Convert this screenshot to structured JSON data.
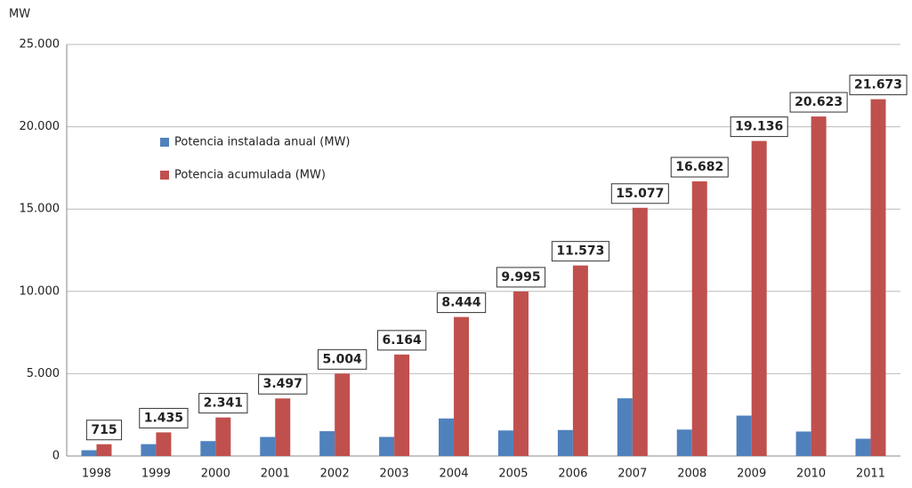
{
  "chart_data": {
    "type": "bar",
    "y_label": "MW",
    "categories": [
      "1998",
      "1999",
      "2000",
      "2001",
      "2002",
      "2003",
      "2004",
      "2005",
      "2006",
      "2007",
      "2008",
      "2009",
      "2010",
      "2011"
    ],
    "series": [
      {
        "name": "Potencia instalada anual (MW)",
        "color": "#4f81bd",
        "values": [
          350,
          720,
          906,
          1156,
          1507,
          1160,
          2280,
          1551,
          1578,
          3504,
          1605,
          2454,
          1487,
          1050
        ]
      },
      {
        "name": "Potencia acumulada (MW)",
        "color": "#c0504d",
        "values": [
          715,
          1435,
          2341,
          3497,
          5004,
          6164,
          8444,
          9995,
          11573,
          15077,
          16682,
          19136,
          20623,
          21673
        ],
        "value_labels": [
          "715",
          "1.435",
          "2.341",
          "3.497",
          "5.004",
          "6.164",
          "8.444",
          "9.995",
          "11.573",
          "15.077",
          "16.682",
          "19.136",
          "20.623",
          "21.673"
        ]
      }
    ],
    "ylim": [
      0,
      25000
    ],
    "yticks": [
      0,
      {
        "value": 5000,
        "label": "5.000"
      },
      {
        "value": 10000,
        "label": "10.000"
      },
      {
        "value": 15000,
        "label": "15.000"
      },
      {
        "value": 20000,
        "label": "20.000"
      },
      {
        "value": 25000,
        "label": "25.000"
      }
    ],
    "grid": true,
    "legend": "upper-left"
  }
}
